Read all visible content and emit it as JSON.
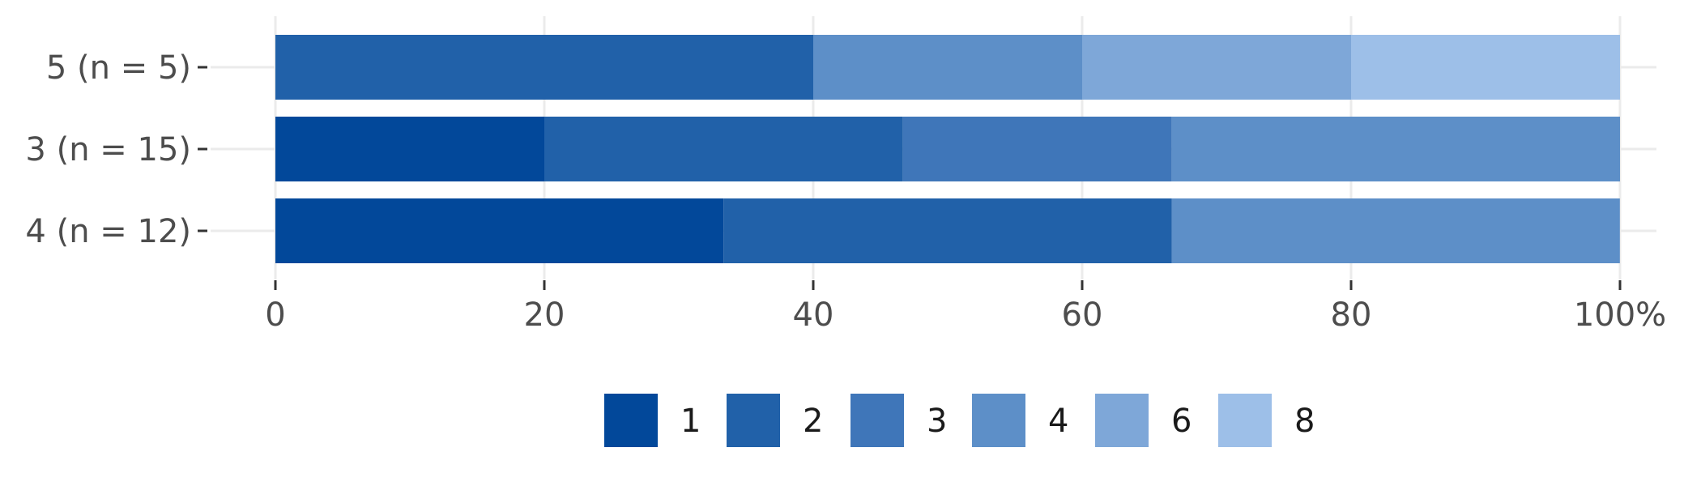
{
  "chart_data": {
    "type": "bar",
    "orientation": "horizontal",
    "stacked": true,
    "percent": true,
    "categories": [
      "5  (n = 5)",
      "3  (n = 15)",
      "4  (n = 12)"
    ],
    "series": [
      {
        "name": "1",
        "color": "#02489a",
        "values": [
          0,
          20,
          33.33
        ]
      },
      {
        "name": "2",
        "color": "#2161a9",
        "values": [
          40,
          26.67,
          33.33
        ]
      },
      {
        "name": "3",
        "color": "#3f76b9",
        "values": [
          0,
          20,
          0
        ]
      },
      {
        "name": "4",
        "color": "#5d8fc8",
        "values": [
          20,
          33.33,
          33.33
        ]
      },
      {
        "name": "6",
        "color": "#7ea7d8",
        "values": [
          20,
          0,
          0
        ]
      },
      {
        "name": "8",
        "color": "#9dbfe8",
        "values": [
          20,
          0,
          0
        ]
      }
    ],
    "x_ticks": [
      "0",
      "20",
      "40",
      "60",
      "80",
      "100%"
    ],
    "xlim": [
      0,
      100
    ],
    "title": "",
    "xlabel": "",
    "ylabel": "",
    "grid": true,
    "legend_position": "bottom"
  }
}
